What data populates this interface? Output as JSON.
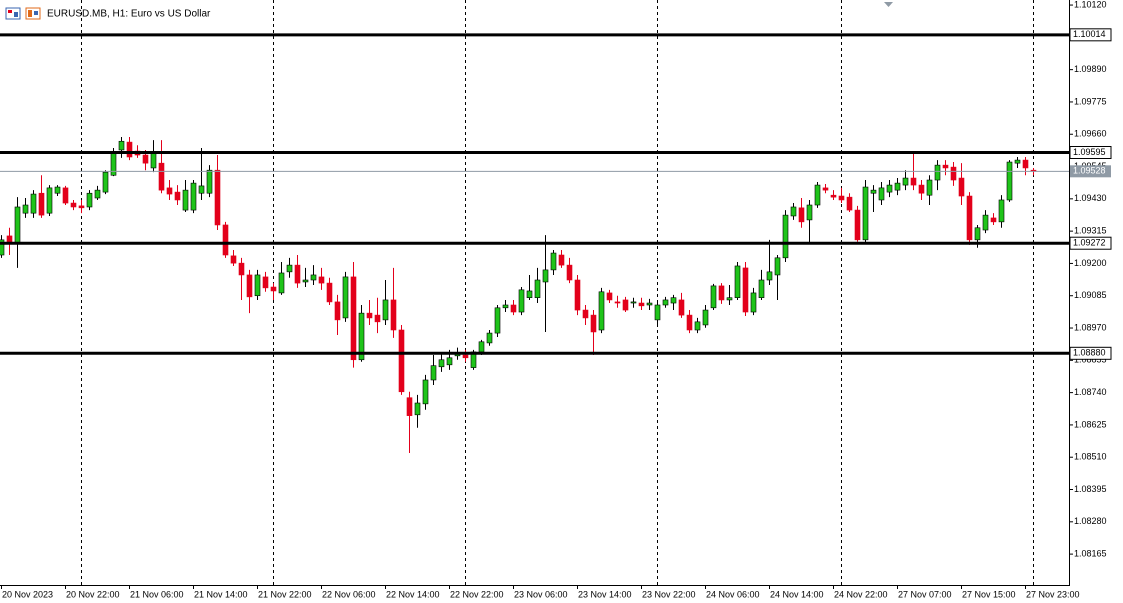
{
  "chart_data": {
    "type": "candlestick",
    "title": "EURUSD.MB, H1:  Euro vs US Dollar",
    "categories": [
      "20 Nov 2023",
      null,
      null,
      null,
      null,
      null,
      null,
      null,
      "20 Nov 22:00",
      null,
      null,
      null,
      null,
      null,
      null,
      null,
      "21 Nov 06:00",
      null,
      null,
      null,
      null,
      null,
      null,
      null,
      "21 Nov 14:00",
      null,
      null,
      null,
      null,
      null,
      null,
      null,
      "21 Nov 22:00",
      null,
      null,
      null,
      null,
      null,
      null,
      null,
      "22 Nov 06:00",
      null,
      null,
      null,
      null,
      null,
      null,
      null,
      "22 Nov 14:00",
      null,
      null,
      null,
      null,
      null,
      null,
      null,
      "22 Nov 22:00",
      null,
      null,
      null,
      null,
      null,
      null,
      null,
      "23 Nov 06:00",
      null,
      null,
      null,
      null,
      null,
      null,
      null,
      "23 Nov 14:00",
      null,
      null,
      null,
      null,
      null,
      null,
      null,
      "23 Nov 22:00",
      null,
      null,
      null,
      null,
      null,
      null,
      null,
      "24 Nov 06:00",
      null,
      null,
      null,
      null,
      null,
      null,
      null,
      "24 Nov 14:00",
      null,
      null,
      null,
      null,
      null,
      null,
      null,
      "24 Nov 22:00",
      null,
      null,
      null,
      null,
      null,
      null,
      null,
      "27 Nov 07:00",
      null,
      null,
      null,
      null,
      null,
      null,
      null,
      "27 Nov 15:00",
      null,
      null,
      null,
      null,
      null,
      null,
      null,
      "27 Nov 23:00",
      null
    ],
    "open": [
      1.0923,
      1.09298,
      1.09273,
      1.09379,
      1.09379,
      1.0945,
      1.09379,
      1.0945,
      1.09469,
      1.09415,
      1.09405,
      1.09401,
      1.09433,
      1.09454,
      1.09514,
      1.09604,
      1.09632,
      1.096,
      1.09586,
      1.0954,
      1.09557,
      1.09469,
      1.09454,
      1.0939,
      1.0939,
      1.0945,
      1.0945,
      1.09532,
      1.09337,
      1.09227,
      1.09201,
      1.09159,
      1.09085,
      1.09152,
      1.09116,
      1.09095,
      1.0917,
      1.09194,
      1.09134,
      1.09141,
      1.09152,
      1.0913,
      1.09063,
      1.09006,
      1.09152,
      1.08857,
      1.09023,
      1.09016,
      1.08999,
      1.0907,
      1.08963,
      1.08722,
      1.08661,
      1.087,
      1.08785,
      1.08832,
      1.08839,
      1.08871,
      1.08874,
      1.08829,
      1.08885,
      1.08917,
      1.08952,
      1.09042,
      1.09052,
      1.09027,
      1.09078,
      1.09078,
      1.09134,
      1.09177,
      1.0923,
      1.09194,
      1.09141,
      1.09034,
      1.09016,
      1.08963,
      1.09095,
      1.09063,
      1.0907,
      1.09059,
      1.09059,
      1.09052,
      1.08999,
      1.09052,
      1.09059,
      1.0907,
      1.09016,
      1.08963,
      1.08981,
      1.09042,
      1.0912,
      1.0907,
      1.09078,
      1.09184,
      1.09027,
      1.09078,
      1.09141,
      1.09159,
      1.0922,
      1.09369,
      1.09398,
      1.09355,
      1.09408,
      1.09469,
      1.09443,
      1.0944,
      1.09436,
      1.0939,
      1.09284,
      1.0945,
      1.09426,
      1.09454,
      1.09461,
      1.09479,
      1.09504,
      1.09479,
      1.09443,
      1.09497,
      1.0955,
      1.09543,
      1.09504,
      1.0944,
      1.09284,
      1.09319,
      1.09362,
      1.09348,
      1.09426,
      1.09557,
      1.09568,
      1.09532
    ],
    "high": [
      1.09301,
      1.09327,
      1.09436,
      1.09433,
      1.09461,
      1.09514,
      1.09479,
      1.09479,
      1.09476,
      1.09426,
      1.09426,
      1.09461,
      1.09476,
      1.09532,
      1.09611,
      1.0965,
      1.0965,
      1.09621,
      1.09604,
      1.09639,
      1.09639,
      1.09497,
      1.09479,
      1.09497,
      1.09497,
      1.09611,
      1.0955,
      1.09586,
      1.09348,
      1.09248,
      1.0922,
      1.09177,
      1.09177,
      1.0917,
      1.0913,
      1.09205,
      1.0922,
      1.0923,
      1.09184,
      1.09194,
      1.09184,
      1.09149,
      1.09088,
      1.0917,
      1.09205,
      1.09052,
      1.0907,
      1.09078,
      1.09141,
      1.09184,
      1.08981,
      1.08743,
      1.08732,
      1.08803,
      1.08874,
      1.08881,
      1.08892,
      1.089,
      1.08892,
      1.08892,
      1.08928,
      1.08963,
      1.09052,
      1.0907,
      1.0907,
      1.09116,
      1.09159,
      1.09184,
      1.09301,
      1.09248,
      1.09248,
      1.0922,
      1.09159,
      1.09052,
      1.09034,
      1.09113,
      1.09106,
      1.09085,
      1.09081,
      1.09078,
      1.09078,
      1.09074,
      1.0907,
      1.09081,
      1.09088,
      1.09095,
      1.09034,
      1.09006,
      1.09052,
      1.09127,
      1.0913,
      1.09123,
      1.09205,
      1.09205,
      1.09113,
      1.09177,
      1.09284,
      1.0923,
      1.0939,
      1.09415,
      1.09433,
      1.09426,
      1.0949,
      1.09483,
      1.09461,
      1.09469,
      1.0945,
      1.09405,
      1.09497,
      1.09479,
      1.0949,
      1.09497,
      1.09504,
      1.09532,
      1.09593,
      1.09497,
      1.09514,
      1.09568,
      1.09568,
      1.09561,
      1.09557,
      1.09454,
      1.09337,
      1.0939,
      1.09379,
      1.09443,
      1.09568,
      1.09579,
      1.09579,
      1.0954
    ],
    "low": [
      1.0922,
      1.0923,
      1.09184,
      1.09362,
      1.09362,
      1.09362,
      1.09369,
      1.0944,
      1.09408,
      1.0939,
      1.09379,
      1.0939,
      1.09426,
      1.09447,
      1.09511,
      1.09576,
      1.09568,
      1.09576,
      1.09532,
      1.09525,
      1.0945,
      1.09426,
      1.09408,
      1.09383,
      1.09379,
      1.09426,
      1.09436,
      1.09319,
      1.0922,
      1.09191,
      1.0907,
      1.09023,
      1.0907,
      1.09099,
      1.0907,
      1.09088,
      1.09149,
      1.09113,
      1.09116,
      1.09123,
      1.09106,
      1.09052,
      1.08945,
      1.08992,
      1.08829,
      1.0885,
      1.08981,
      1.08952,
      1.08981,
      1.08935,
      1.08732,
      1.08525,
      1.08615,
      1.08679,
      1.08767,
      1.08814,
      1.08821,
      1.08857,
      1.0885,
      1.08821,
      1.08874,
      1.08907,
      1.08938,
      1.09027,
      1.09016,
      1.09016,
      1.0907,
      1.09059,
      1.08956,
      1.09159,
      1.09184,
      1.0913,
      1.09016,
      1.08981,
      1.08874,
      1.08952,
      1.09059,
      1.09042,
      1.09027,
      1.09042,
      1.09034,
      1.09034,
      1.08981,
      1.09042,
      1.09034,
      1.09006,
      1.08952,
      1.08952,
      1.08971,
      1.09034,
      1.09056,
      1.09052,
      1.0907,
      1.09013,
      1.09016,
      1.0907,
      1.09123,
      1.0907,
      1.09205,
      1.09355,
      1.09327,
      1.09273,
      1.09398,
      1.0945,
      1.09426,
      1.09415,
      1.09383,
      1.09277,
      1.09273,
      1.09383,
      1.09408,
      1.09436,
      1.09443,
      1.09461,
      1.09461,
      1.09426,
      1.09408,
      1.09461,
      1.09514,
      1.09476,
      1.09408,
      1.09266,
      1.09256,
      1.09308,
      1.09337,
      1.09327,
      1.09419,
      1.0954,
      1.09514,
      1.09514
    ],
    "close": [
      1.09284,
      1.0927,
      1.09401,
      1.09408,
      1.09447,
      1.09372,
      1.09469,
      1.09472,
      1.09415,
      1.09401,
      1.09398,
      1.0945,
      1.09461,
      1.09525,
      1.09597,
      1.09635,
      1.09579,
      1.09586,
      1.09557,
      1.09593,
      1.09461,
      1.09447,
      1.09426,
      1.09461,
      1.09486,
      1.09476,
      1.09532,
      1.09337,
      1.0923,
      1.09201,
      1.09159,
      1.09081,
      1.09159,
      1.09113,
      1.09102,
      1.09166,
      1.09194,
      1.0913,
      1.09141,
      1.09159,
      1.0913,
      1.09063,
      1.08999,
      1.09152,
      1.08857,
      1.09023,
      1.09006,
      1.08992,
      1.0907,
      1.08963,
      1.08743,
      1.08658,
      1.08703,
      1.08785,
      1.08836,
      1.08857,
      1.08864,
      1.08881,
      1.08864,
      1.08885,
      1.08921,
      1.08952,
      1.09042,
      1.09052,
      1.09027,
      1.09106,
      1.09102,
      1.09141,
      1.09177,
      1.09237,
      1.09194,
      1.09141,
      1.09034,
      1.09006,
      1.08956,
      1.09099,
      1.0907,
      1.09059,
      1.09034,
      1.09063,
      1.09049,
      1.09059,
      1.09052,
      1.0907,
      1.09078,
      1.09016,
      1.08963,
      1.08992,
      1.09034,
      1.0912,
      1.0907,
      1.09078,
      1.09191,
      1.09027,
      1.09095,
      1.09141,
      1.0917,
      1.0922,
      1.09372,
      1.09401,
      1.09348,
      1.09408,
      1.09479,
      1.09461,
      1.09436,
      1.09426,
      1.0939,
      1.09284,
      1.09472,
      1.09461,
      1.09469,
      1.09479,
      1.09486,
      1.09504,
      1.09479,
      1.0945,
      1.09497,
      1.0955,
      1.0954,
      1.09497,
      1.0944,
      1.09284,
      1.09327,
      1.09372,
      1.09348,
      1.09426,
      1.09561,
      1.09568,
      1.0954,
      1.09528
    ],
    "colors": {
      "up": "#1fc41a",
      "down": "#e3001b",
      "outline": "#000000",
      "price_line": "#8f9aa5"
    },
    "ylim": [
      1.08055,
      1.10138
    ],
    "yticks": [
      {
        "value": 1.1012,
        "label": "1.10120"
      },
      {
        "value": 1.0989,
        "label": "1.09890"
      },
      1.09775,
      {
        "value": 1.0966,
        "label": "1.09660"
      },
      1.09545,
      {
        "value": 1.0943,
        "label": "1.09430"
      },
      1.09315,
      {
        "value": 1.092,
        "label": "1.09200"
      },
      1.09085,
      {
        "value": 1.0897,
        "label": "1.08970"
      },
      1.08855,
      {
        "value": 1.0874,
        "label": "1.08740"
      },
      1.08625,
      {
        "value": 1.0851,
        "label": "1.08510"
      },
      1.08395,
      {
        "value": 1.0828,
        "label": "1.08280"
      },
      1.08165
    ],
    "hlines": [
      1.10014,
      1.09595,
      1.09272,
      {
        "value": 1.0888,
        "label": "1.08880"
      }
    ]
  }
}
